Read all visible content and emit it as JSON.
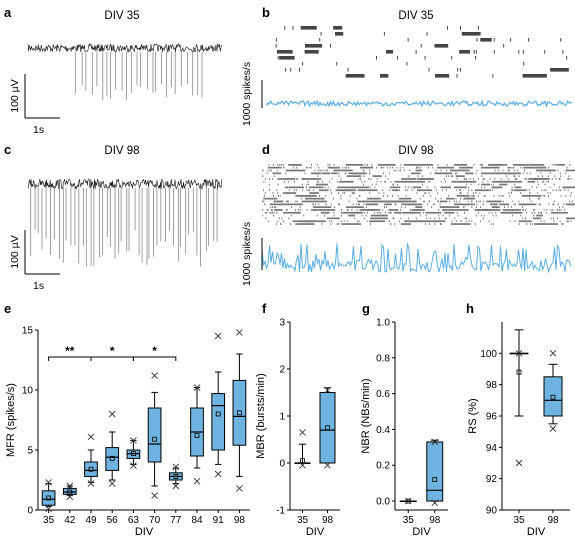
{
  "panels": {
    "a": {
      "label": "a",
      "title": "DIV 35",
      "scale_v": "100 µV",
      "scale_t": "1s"
    },
    "b": {
      "label": "b",
      "title": "DIV 35",
      "scale_rate": "1000 spikes/s"
    },
    "c": {
      "label": "c",
      "title": "DIV 98",
      "scale_v": "100 µV",
      "scale_t": "1s"
    },
    "d": {
      "label": "d",
      "title": "DIV 98",
      "scale_rate": "1000 spikes/s"
    },
    "e": {
      "label": "e"
    },
    "f": {
      "label": "f"
    },
    "g": {
      "label": "g"
    },
    "h": {
      "label": "h"
    }
  },
  "colors": {
    "box": "#6fb3e0",
    "rate_trace": "#5aaee5",
    "trace": "#111111",
    "spike": "#888888"
  },
  "chart_data": [
    {
      "id": "e",
      "type": "box",
      "xlabel": "DIV",
      "ylabel": "MFR (spikes/s)",
      "ylim": [
        0,
        15
      ],
      "yticks": [
        "0",
        "5",
        "10",
        "15"
      ],
      "categories": [
        "35",
        "42",
        "49",
        "56",
        "63",
        "70",
        "77",
        "84",
        "91",
        "98"
      ],
      "boxes": [
        {
          "min": 0.3,
          "q1": 0.4,
          "median": 0.9,
          "q3": 1.6,
          "max": 2.2,
          "mean": 1.0,
          "outliers": [
            0.1,
            2.3
          ]
        },
        {
          "min": 1.2,
          "q1": 1.3,
          "median": 1.5,
          "q3": 1.8,
          "max": 2.0,
          "mean": 1.5,
          "outliers": [
            1.1,
            2.0
          ]
        },
        {
          "min": 2.3,
          "q1": 2.8,
          "median": 3.3,
          "q3": 4.0,
          "max": 5.0,
          "mean": 3.4,
          "outliers": [
            2.2,
            6.1
          ]
        },
        {
          "min": 2.5,
          "q1": 3.3,
          "median": 4.4,
          "q3": 5.2,
          "max": 6.5,
          "mean": 4.3,
          "outliers": [
            2.2,
            8.0
          ]
        },
        {
          "min": 3.8,
          "q1": 4.3,
          "median": 4.7,
          "q3": 5.0,
          "max": 5.8,
          "mean": 4.7,
          "outliers": [
            3.7,
            5.8
          ]
        },
        {
          "min": 2.0,
          "q1": 4.0,
          "median": 5.5,
          "q3": 8.5,
          "max": 9.8,
          "mean": 5.9,
          "outliers": [
            1.2,
            11.2
          ]
        },
        {
          "min": 2.2,
          "q1": 2.5,
          "median": 2.8,
          "q3": 3.1,
          "max": 3.5,
          "mean": 2.8,
          "outliers": [
            2.0,
            3.6
          ]
        },
        {
          "min": 3.5,
          "q1": 4.5,
          "median": 6.5,
          "q3": 8.5,
          "max": 10.2,
          "mean": 6.2,
          "outliers": [
            2.4,
            10.2
          ]
        },
        {
          "min": 3.8,
          "q1": 5.0,
          "median": 8.7,
          "q3": 9.7,
          "max": 11.5,
          "mean": 8.0,
          "outliers": [
            3.0,
            14.5
          ]
        },
        {
          "min": 2.8,
          "q1": 5.4,
          "median": 7.8,
          "q3": 10.8,
          "max": 13.0,
          "mean": 8.1,
          "outliers": [
            1.8,
            14.8
          ]
        }
      ],
      "significance": [
        {
          "from": "35",
          "to": "49",
          "label": "**"
        },
        {
          "from": "49",
          "to": "63",
          "label": "*"
        },
        {
          "from": "63",
          "to": "77",
          "label": "*"
        }
      ]
    },
    {
      "id": "f",
      "type": "box",
      "xlabel": "DIV",
      "ylabel": "MBR (bursts/min)",
      "ylim": [
        -1,
        3
      ],
      "yticks": [
        "-1",
        "0",
        "1",
        "2",
        "3"
      ],
      "categories": [
        "35",
        "98"
      ],
      "boxes": [
        {
          "min": 0.0,
          "q1": 0.0,
          "median": 0.0,
          "q3": 0.0,
          "max": 0.4,
          "mean": 0.05,
          "outliers": [
            0.65,
            -0.05
          ]
        },
        {
          "min": 0.0,
          "q1": 0.0,
          "median": 0.7,
          "q3": 1.5,
          "max": 1.6,
          "mean": 0.75,
          "outliers": [
            1.55,
            -0.05
          ]
        }
      ]
    },
    {
      "id": "g",
      "type": "box",
      "xlabel": "DIV",
      "ylabel": "NBR (NBs/min)",
      "ylim": [
        -0.05,
        1.0
      ],
      "yticks": [
        "0.0",
        "0.2",
        "0.4",
        "0.6",
        "0.8",
        "1.0"
      ],
      "categories": [
        "35",
        "98"
      ],
      "boxes": [
        {
          "min": 0.0,
          "q1": 0.0,
          "median": 0.0,
          "q3": 0.0,
          "max": 0.0,
          "mean": 0.0,
          "outliers": [
            0.0
          ]
        },
        {
          "min": 0.0,
          "q1": 0.0,
          "median": 0.06,
          "q3": 0.33,
          "max": 0.34,
          "mean": 0.12,
          "outliers": [
            0.33,
            -0.01
          ]
        }
      ]
    },
    {
      "id": "h",
      "type": "box",
      "xlabel": "DIV",
      "ylabel": "RS (%)",
      "ylim": [
        90,
        102
      ],
      "yticks": [
        "90",
        "92",
        "94",
        "96",
        "98",
        "100"
      ],
      "categories": [
        "35",
        "98"
      ],
      "boxes": [
        {
          "min": 96.0,
          "q1": 100.0,
          "median": 100.0,
          "q3": 100.0,
          "max": 101.5,
          "mean": 98.8,
          "outliers": [
            93.0,
            100.0
          ]
        },
        {
          "min": 95.5,
          "q1": 96.0,
          "median": 97.0,
          "q3": 98.5,
          "max": 99.3,
          "mean": 97.2,
          "outliers": [
            100.0,
            95.2
          ]
        }
      ]
    }
  ]
}
